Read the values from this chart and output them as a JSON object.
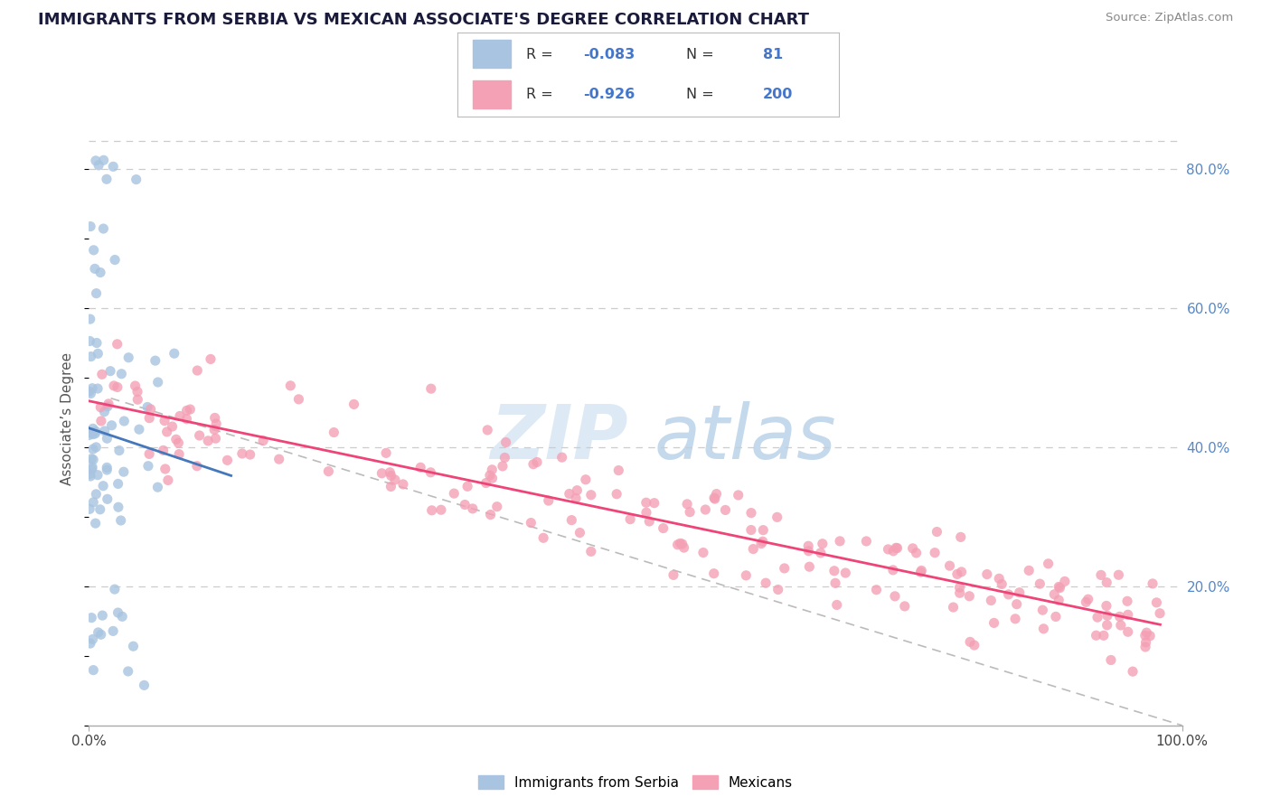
{
  "title": "IMMIGRANTS FROM SERBIA VS MEXICAN ASSOCIATE'S DEGREE CORRELATION CHART",
  "source_text": "Source: ZipAtlas.com",
  "ylabel": "Associate’s Degree",
  "legend_label_1": "Immigrants from Serbia",
  "legend_label_2": "Mexicans",
  "r1": -0.083,
  "n1": 81,
  "r2": -0.926,
  "n2": 200,
  "color_blue": "#a8c4e0",
  "color_pink": "#f4a0b5",
  "color_blue_line": "#4477bb",
  "color_pink_line": "#ee4477",
  "color_dashed": "#bbbbbb",
  "xlim": [
    0.0,
    1.0
  ],
  "ylim": [
    0.0,
    0.88
  ],
  "y_ticks_right": [
    0.2,
    0.4,
    0.6,
    0.8
  ],
  "y_tick_labels_right": [
    "20.0%",
    "40.0%",
    "60.0%",
    "80.0%"
  ],
  "seed": 42
}
